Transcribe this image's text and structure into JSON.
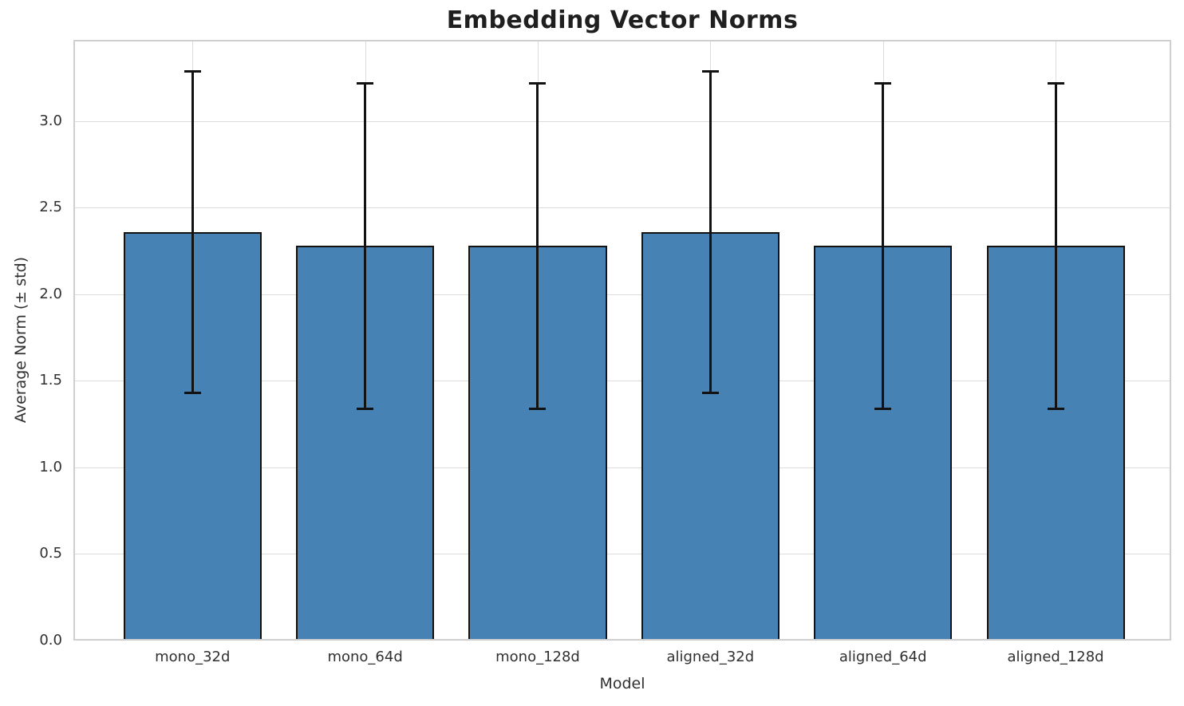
{
  "chart_data": {
    "type": "bar",
    "title": "Embedding Vector Norms",
    "xlabel": "Model",
    "ylabel": "Average Norm (± std)",
    "categories": [
      "mono_32d",
      "mono_64d",
      "mono_128d",
      "aligned_32d",
      "aligned_64d",
      "aligned_128d"
    ],
    "values": [
      2.36,
      2.28,
      2.28,
      2.36,
      2.28,
      2.28
    ],
    "errors": [
      0.93,
      0.94,
      0.94,
      0.93,
      0.94,
      0.94
    ],
    "yticks": [
      0.0,
      0.5,
      1.0,
      1.5,
      2.0,
      2.5,
      3.0
    ],
    "ytick_labels": [
      "0.0",
      "0.5",
      "1.0",
      "1.5",
      "2.0",
      "2.5",
      "3.0"
    ],
    "ylim": [
      0,
      3.47
    ],
    "xlim": [
      -0.69,
      5.67
    ],
    "bar_width_units": 0.8,
    "grid": true,
    "legend": "none",
    "bar_color": "#4682b4",
    "bar_edge_color": "#121212",
    "error_color": "#121212",
    "grid_color": "#dcdcdc",
    "spine_color": "#cfcfcf",
    "text_color": "#303030"
  }
}
